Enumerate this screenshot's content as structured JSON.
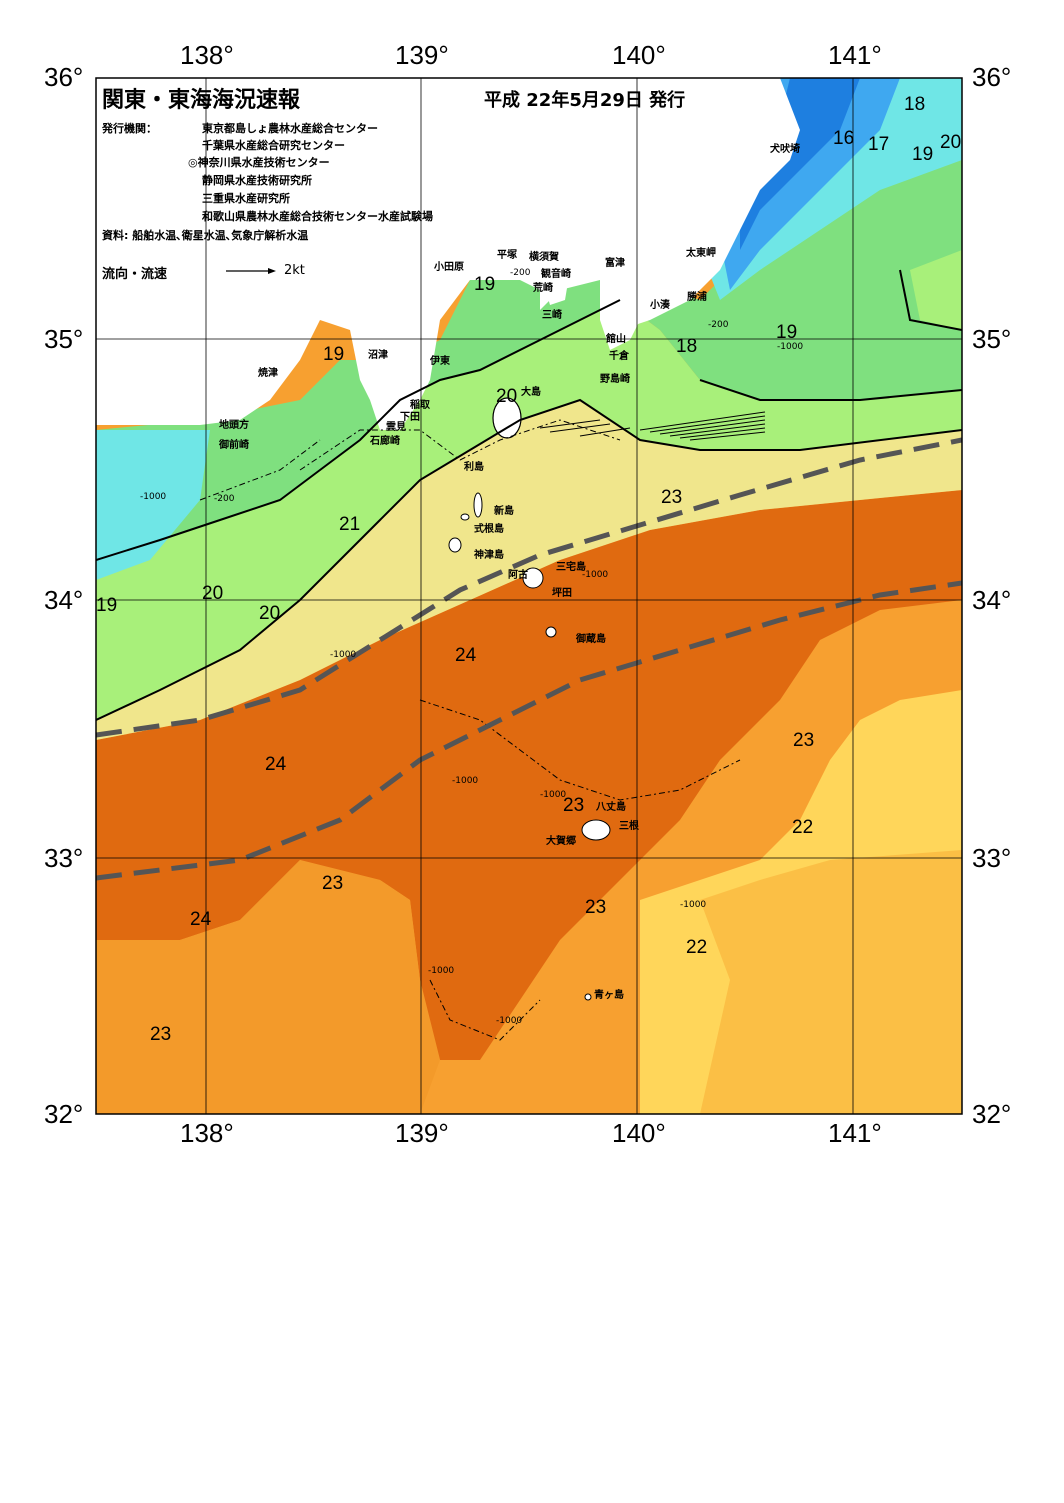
{
  "header": {
    "title": "関東・東海海況速報",
    "date": "平成 22年5月29日 発行",
    "publisher_label": "発行機関：",
    "publishers": [
      "東京都島しょ農林水産総合センター",
      "千葉県水産総合研究センター",
      "◎神奈川県水産技術センター",
      "静岡県水産技術研究所",
      "三重県水産研究所",
      "和歌山県農林水産総合技術センター水産試験場"
    ],
    "sources": "資料: 船舶水温､衛星水温､気象庁解析水温",
    "current_legend": "流向・流速",
    "current_scale": "2kt"
  },
  "axes": {
    "lon_ticks": [
      "138°",
      "139°",
      "140°",
      "141°"
    ],
    "lat_ticks": [
      "36°",
      "35°",
      "34°",
      "33°",
      "32°"
    ]
  },
  "places": {
    "inubozaki": "犬吠埼",
    "taitomisaki": "太東岬",
    "katsuura": "勝浦",
    "kominato": "小湊",
    "futtsu": "富津",
    "yokosuka": "横須賀",
    "kannonzaki": "観音崎",
    "arasaki": "荒崎",
    "misaki": "三崎",
    "hiratsuka": "平塚",
    "odawara": "小田原",
    "tateyama": "館山",
    "chikura": "千倉",
    "nojimazaki": "野島崎",
    "numazu": "沼津",
    "ito": "伊東",
    "inatori": "稲取",
    "shimoda": "下田",
    "kumomi": "雲見",
    "irozaki": "石廊崎",
    "yaizu": "焼津",
    "jitogata": "地頭方",
    "omaezaki": "御前崎",
    "oshima": "大島",
    "toshima": "利島",
    "niijima": "新島",
    "shikinejima": "式根島",
    "kozushima": "神津島",
    "miyakejima": "三宅島",
    "ako": "阿古",
    "tsubota": "坪田",
    "mikurajima": "御蔵島",
    "hachijojima": "八丈島",
    "mitsune": "三根",
    "okago": "大賀郷",
    "aogashima": "青ヶ島"
  },
  "isotherm_labels": [
    "18",
    "16",
    "17",
    "19",
    "20",
    "19",
    "19",
    "18",
    "19",
    "20",
    "21",
    "20",
    "20",
    "19",
    "23",
    "24",
    "24",
    "23",
    "23",
    "22",
    "24",
    "23",
    "23",
    "22",
    "23"
  ],
  "depth_labels": [
    "-200",
    "-1000"
  ],
  "colors": {
    "temp_16": "#1e7fe0",
    "temp_17": "#3fa8f0",
    "temp_18": "#6fe6e6",
    "temp_19": "#7fe07f",
    "temp_20": "#a8f07a",
    "temp_21": "#f0e68c",
    "temp_22": "#ffd65a",
    "temp_23": "#f7a030",
    "temp_24": "#e06a10",
    "land": "#ffffff",
    "kuroshio_axis": "#555555"
  }
}
